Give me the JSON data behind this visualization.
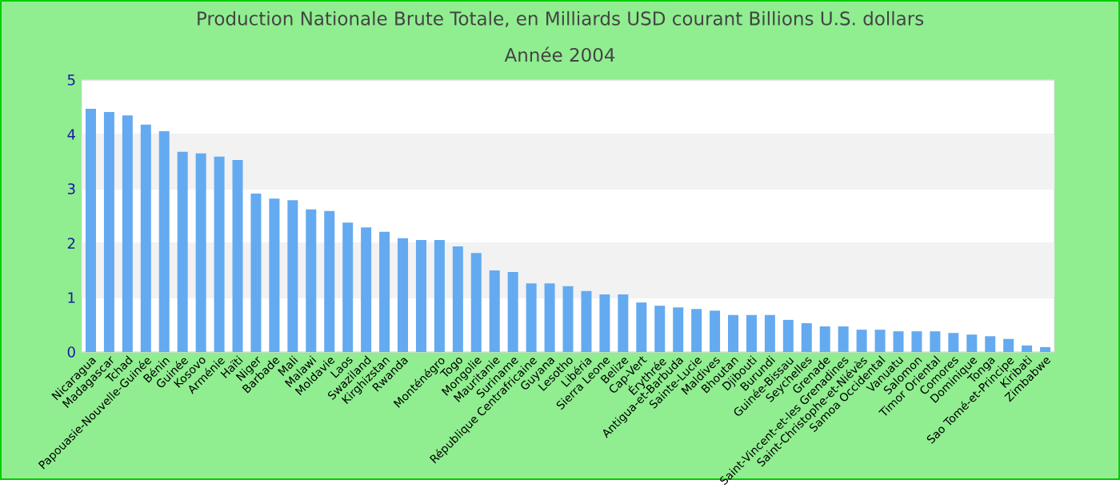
{
  "chart_data": {
    "type": "bar",
    "title": "Production Nationale Brute Totale, en Milliards USD courant Billions U.S. dollars",
    "subtitle": "Année 2004",
    "categories": [
      "Nicaragua",
      "Madagascar",
      "Tchad",
      "Papouasie-Nouvelle-Guinée",
      "Bénin",
      "Guinée",
      "Kosovo",
      "Arménie",
      "Haïti",
      "Niger",
      "Barbade",
      "Mali",
      "Malawi",
      "Moldavie",
      "Laos",
      "Swaziland",
      "Kirghizstan",
      "Rwanda",
      null,
      "Monténégro",
      "Togo",
      "Mongolie",
      "Mauritanie",
      "Suriname",
      "République Centrafricaine",
      "Guyana",
      "Lesotho",
      "Libéria",
      "Sierra Leone",
      "Belize",
      "Cap-Vert",
      "Érythrée",
      "Antigua-et-Barbuda",
      "Sainte-Lucie",
      "Maldives",
      "Bhoutan",
      "Djibouti",
      "Burundi",
      "Guinée-Bissau",
      "Seychelles",
      "Grenade",
      "Saint-Vincent-et-les Grenadines",
      "Saint-Christophe-et-Niévès",
      "Samoa Occidental",
      "Vanuatu",
      "Salomon",
      "Timor Oriental",
      "Comores",
      "Dominique",
      "Tonga",
      "Sao Tomé-et-Principe",
      "Kiribati",
      "Zimbabwe"
    ],
    "values": [
      4.47,
      4.41,
      4.35,
      4.18,
      4.06,
      3.68,
      3.65,
      3.59,
      3.53,
      2.91,
      2.82,
      2.79,
      2.62,
      2.59,
      2.38,
      2.29,
      2.21,
      2.09,
      2.06,
      2.06,
      1.94,
      1.82,
      1.5,
      1.47,
      1.26,
      1.26,
      1.21,
      1.12,
      1.06,
      1.06,
      0.91,
      0.85,
      0.82,
      0.79,
      0.76,
      0.68,
      0.68,
      0.68,
      0.59,
      0.53,
      0.47,
      0.47,
      0.41,
      0.41,
      0.38,
      0.38,
      0.38,
      0.35,
      0.32,
      0.29,
      0.24,
      0.12,
      0.09
    ],
    "color": "#64aaf0",
    "ylim": [
      0,
      5
    ],
    "yticks": [
      0,
      1,
      2,
      3,
      4,
      5
    ],
    "grid": true
  }
}
